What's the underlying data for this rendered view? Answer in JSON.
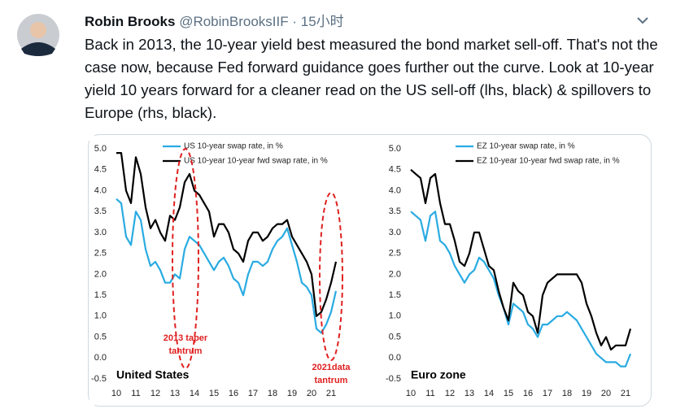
{
  "tweet": {
    "name": "Robin Brooks",
    "handle": "@RobinBrooksIIF",
    "separator": "·",
    "time": "15小时",
    "text": "Back in 2013, the 10-year yield best measured the bond market sell-off. That's not the case now, because Fed forward guidance goes further out the curve. Look at 10-year yield 10 years forward for a cleaner read on the US sell-off (lhs, black) & spillovers to Europe (rhs, black)."
  },
  "chart_data": [
    {
      "type": "line",
      "label": "United States",
      "legend": "upper left",
      "x": [
        10,
        10.25,
        10.5,
        10.75,
        11,
        11.25,
        11.5,
        11.75,
        12,
        12.25,
        12.5,
        12.75,
        13,
        13.25,
        13.5,
        13.75,
        14,
        14.25,
        14.5,
        14.75,
        15,
        15.25,
        15.5,
        15.75,
        16,
        16.25,
        16.5,
        16.75,
        17,
        17.25,
        17.5,
        17.75,
        18,
        18.25,
        18.5,
        18.75,
        19,
        19.25,
        19.5,
        19.75,
        20,
        20.25,
        20.5,
        20.75,
        21,
        21.25
      ],
      "series": [
        {
          "name": "US 10-year swap rate, in %",
          "color": "#29abe2",
          "values": [
            3.8,
            3.7,
            2.9,
            2.7,
            3.5,
            3.3,
            2.6,
            2.2,
            2.3,
            2.1,
            1.8,
            1.8,
            2.0,
            1.9,
            2.6,
            2.9,
            2.8,
            2.7,
            2.5,
            2.3,
            2.1,
            2.3,
            2.4,
            2.2,
            1.9,
            1.8,
            1.5,
            2.0,
            2.3,
            2.3,
            2.2,
            2.3,
            2.6,
            2.8,
            2.9,
            3.1,
            2.7,
            2.3,
            1.8,
            1.7,
            1.5,
            0.7,
            0.6,
            0.8,
            1.1,
            1.6
          ]
        },
        {
          "name": "US 10-year 10-year fwd swap rate, in %",
          "color": "#000000",
          "values": [
            4.9,
            4.9,
            4.0,
            3.7,
            4.8,
            4.4,
            3.6,
            3.1,
            3.3,
            3.0,
            2.8,
            3.4,
            3.3,
            3.6,
            4.2,
            4.4,
            4.0,
            3.9,
            3.7,
            3.5,
            2.9,
            3.2,
            3.2,
            3.0,
            2.6,
            2.5,
            2.3,
            2.8,
            3.0,
            3.0,
            2.8,
            2.9,
            3.1,
            3.2,
            3.2,
            3.3,
            2.9,
            2.7,
            2.5,
            2.3,
            2.0,
            1.0,
            1.1,
            1.4,
            1.8,
            2.3
          ]
        }
      ],
      "xlim": [
        10,
        21.5
      ],
      "xticks": [
        10,
        11,
        12,
        13,
        14,
        15,
        16,
        17,
        18,
        19,
        20,
        21
      ],
      "ylim": [
        -0.5,
        5
      ],
      "yticks": [
        -0.5,
        {
          "value": 0,
          "label": "0.0"
        },
        0.5,
        {
          "value": 1,
          "label": "1.0"
        },
        1.5,
        {
          "value": 2,
          "label": "2.0"
        },
        2.5,
        {
          "value": 3,
          "label": "3.0"
        },
        3.5,
        {
          "value": 4,
          "label": "4.0"
        },
        4.5,
        {
          "value": 5,
          "label": "5.0"
        }
      ],
      "annotations": [
        [
          "2013 taper",
          "tantrum"
        ],
        [
          "2021data",
          "tantrum"
        ]
      ]
    },
    {
      "type": "line",
      "label": "Euro zone",
      "legend": "upper left",
      "x": [
        10,
        10.25,
        10.5,
        10.75,
        11,
        11.25,
        11.5,
        11.75,
        12,
        12.25,
        12.5,
        12.75,
        13,
        13.25,
        13.5,
        13.75,
        14,
        14.25,
        14.5,
        14.75,
        15,
        15.25,
        15.5,
        15.75,
        16,
        16.25,
        16.5,
        16.75,
        17,
        17.25,
        17.5,
        17.75,
        18,
        18.25,
        18.5,
        18.75,
        19,
        19.25,
        19.5,
        19.75,
        20,
        20.25,
        20.5,
        20.75,
        21,
        21.25
      ],
      "series": [
        {
          "name": "EZ 10-year swap rate, in %",
          "color": "#29abe2",
          "values": [
            3.5,
            3.4,
            3.3,
            2.8,
            3.4,
            3.5,
            2.8,
            2.7,
            2.5,
            2.2,
            2.0,
            1.8,
            2.0,
            2.1,
            2.4,
            2.3,
            2.1,
            1.9,
            1.5,
            1.2,
            0.8,
            1.3,
            1.2,
            1.1,
            0.8,
            0.7,
            0.5,
            0.8,
            0.8,
            0.9,
            1.0,
            1.0,
            1.1,
            1.0,
            0.9,
            0.7,
            0.5,
            0.3,
            0.1,
            0.0,
            -0.1,
            -0.1,
            -0.1,
            -0.2,
            -0.2,
            0.1
          ]
        },
        {
          "name": "EZ 10-year 10-year fwd swap rate, in %",
          "color": "#000000",
          "values": [
            4.5,
            4.4,
            4.3,
            3.7,
            4.3,
            4.4,
            3.7,
            3.2,
            3.2,
            2.8,
            2.3,
            2.2,
            2.5,
            3.0,
            3.0,
            2.6,
            2.2,
            2.1,
            1.6,
            1.2,
            0.9,
            1.8,
            1.6,
            1.5,
            1.1,
            1.0,
            0.6,
            1.5,
            1.8,
            1.9,
            2.0,
            2.0,
            2.0,
            2.0,
            2.0,
            1.8,
            1.3,
            1.0,
            0.6,
            0.3,
            0.5,
            0.2,
            0.3,
            0.3,
            0.3,
            0.7
          ]
        }
      ],
      "xlim": [
        10,
        21.5
      ],
      "xticks": [
        10,
        11,
        12,
        13,
        14,
        15,
        16,
        17,
        18,
        19,
        20,
        21
      ],
      "ylim": [
        -0.5,
        5
      ],
      "yticks": [
        -0.5,
        {
          "value": 0,
          "label": "0.0"
        },
        0.5,
        {
          "value": 1,
          "label": "1.0"
        },
        1.5,
        {
          "value": 2,
          "label": "2.0"
        },
        2.5,
        {
          "value": 3,
          "label": "3.0"
        },
        3.5,
        {
          "value": 4,
          "label": "4.0"
        },
        4.5,
        {
          "value": 5,
          "label": "5.0"
        }
      ]
    }
  ]
}
